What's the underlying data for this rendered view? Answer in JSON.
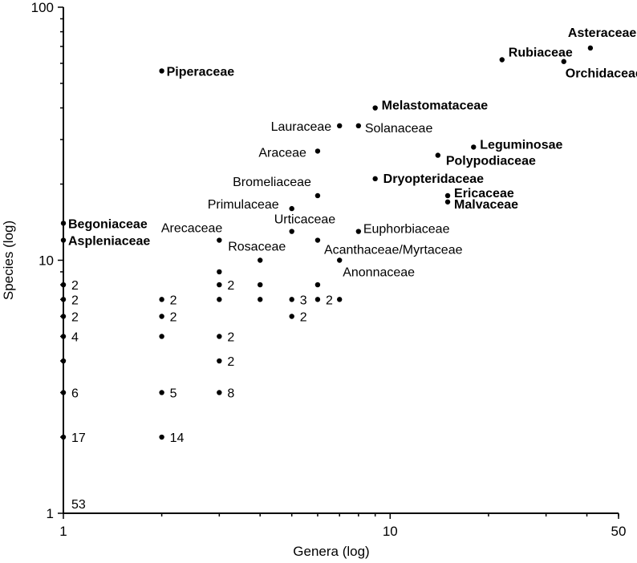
{
  "chart_data": {
    "type": "scatter",
    "xlabel": "Genera (log)",
    "ylabel": "Species (log)",
    "x_scale": "log",
    "y_scale": "log",
    "xlim": [
      1,
      50
    ],
    "ylim": [
      1,
      100
    ],
    "x_ticks": [
      "1",
      "10",
      "50"
    ],
    "y_ticks": [
      "1",
      "10",
      "100"
    ],
    "grid": false,
    "labeled_points": [
      {
        "label": "Asteraceae",
        "x": 41,
        "y": 69,
        "bold": true
      },
      {
        "label": "Rubiaceae",
        "x": 22,
        "y": 62,
        "bold": true
      },
      {
        "label": "Orchidaceae",
        "x": 34,
        "y": 61,
        "bold": true
      },
      {
        "label": "Piperaceae",
        "x": 2,
        "y": 56,
        "bold": true
      },
      {
        "label": "Melastomataceae",
        "x": 9,
        "y": 40,
        "bold": true
      },
      {
        "label": "Lauraceae",
        "x": 7,
        "y": 34,
        "bold": false
      },
      {
        "label": "Solanaceae",
        "x": 8,
        "y": 34,
        "bold": false
      },
      {
        "label": "Leguminosae",
        "x": 18,
        "y": 28,
        "bold": true
      },
      {
        "label": "Araceae",
        "x": 6,
        "y": 27,
        "bold": false
      },
      {
        "label": "Polypodiaceae",
        "x": 14,
        "y": 26,
        "bold": true
      },
      {
        "label": "Dryopteridaceae",
        "x": 9,
        "y": 21,
        "bold": true
      },
      {
        "label": "Bromeliaceae",
        "x": 6,
        "y": 18,
        "bold": false
      },
      {
        "label": "Ericaceae",
        "x": 15,
        "y": 18,
        "bold": true
      },
      {
        "label": "Primulaceae",
        "x": 5,
        "y": 16,
        "bold": false
      },
      {
        "label": "Malvaceae",
        "x": 15,
        "y": 17,
        "bold": true
      },
      {
        "label": "Begoniaceae",
        "x": 1,
        "y": 14,
        "bold": true
      },
      {
        "label": "Arecaceae",
        "x": 3,
        "y": 12,
        "bold": false
      },
      {
        "label": "Urticaceae",
        "x": 5,
        "y": 13,
        "bold": false
      },
      {
        "label": "Euphorbiaceae",
        "x": 8,
        "y": 13,
        "bold": false
      },
      {
        "label": "Aspleniaceae",
        "x": 1,
        "y": 12,
        "bold": true
      },
      {
        "label": "Acanthaceae/Myrtaceae",
        "x": 6,
        "y": 12,
        "bold": false
      },
      {
        "label": "Rosaceae",
        "x": 4,
        "y": 10,
        "bold": false
      },
      {
        "label": "Anonnaceae",
        "x": 7,
        "y": 10,
        "bold": false
      }
    ],
    "count_points": [
      {
        "x": 1,
        "y": 8,
        "count": "2"
      },
      {
        "x": 1,
        "y": 7,
        "count": "2"
      },
      {
        "x": 1,
        "y": 6,
        "count": "2"
      },
      {
        "x": 1,
        "y": 5,
        "count": "4"
      },
      {
        "x": 1,
        "y": 3,
        "count": "6"
      },
      {
        "x": 1,
        "y": 2,
        "count": "17"
      },
      {
        "x": 1,
        "y": 1,
        "count": "53"
      },
      {
        "x": 2,
        "y": 7,
        "count": "2"
      },
      {
        "x": 2,
        "y": 6,
        "count": "2"
      },
      {
        "x": 2,
        "y": 3,
        "count": "5"
      },
      {
        "x": 2,
        "y": 2,
        "count": "14"
      },
      {
        "x": 3,
        "y": 8,
        "count": "2"
      },
      {
        "x": 3,
        "y": 5,
        "count": "2"
      },
      {
        "x": 3,
        "y": 4,
        "count": "2"
      },
      {
        "x": 3,
        "y": 3,
        "count": "8"
      },
      {
        "x": 5,
        "y": 7,
        "count": "3"
      },
      {
        "x": 5,
        "y": 6,
        "count": "2"
      },
      {
        "x": 6,
        "y": 7,
        "count": "2"
      }
    ],
    "single_points": [
      {
        "x": 1,
        "y": 4
      },
      {
        "x": 2,
        "y": 5
      },
      {
        "x": 3,
        "y": 9
      },
      {
        "x": 3,
        "y": 7
      },
      {
        "x": 4,
        "y": 8
      },
      {
        "x": 4,
        "y": 7
      },
      {
        "x": 6,
        "y": 8
      },
      {
        "x": 7,
        "y": 7
      }
    ]
  }
}
